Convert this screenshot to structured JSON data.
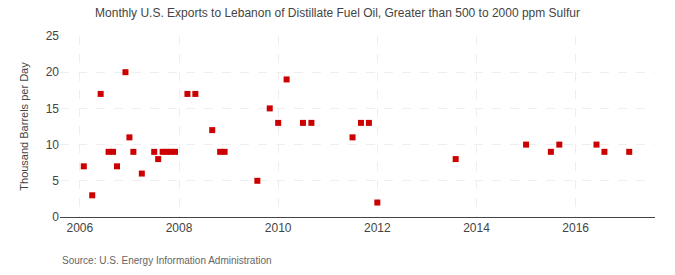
{
  "chart_data": {
    "type": "scatter",
    "title": "Monthly U.S. Exports to Lebanon of Distillate Fuel Oil, Greater than 500 to 2000 ppm Sulfur",
    "ylabel": "Thousand Barrels per Day",
    "annotations": [
      "Source: U.S. Energy Information Administration"
    ],
    "x": [
      2006.08,
      2006.25,
      2006.42,
      2006.58,
      2006.67,
      2006.75,
      2006.92,
      2007.0,
      2007.08,
      2007.25,
      2007.5,
      2007.58,
      2007.67,
      2007.75,
      2007.83,
      2007.92,
      2008.17,
      2008.33,
      2008.67,
      2008.83,
      2008.92,
      2009.58,
      2009.83,
      2010.0,
      2010.17,
      2010.5,
      2010.67,
      2011.5,
      2011.67,
      2011.83,
      2012.0,
      2013.58,
      2015.0,
      2015.5,
      2015.67,
      2016.42,
      2016.58,
      2017.08
    ],
    "values": [
      7,
      3,
      17,
      9,
      9,
      7,
      20,
      11,
      9,
      6,
      9,
      8,
      9,
      9,
      9,
      9,
      17,
      17,
      12,
      9,
      9,
      5,
      15,
      13,
      19,
      13,
      13,
      11,
      13,
      13,
      2,
      8,
      10,
      9,
      10,
      10,
      9,
      9
    ],
    "color": "#cc0000",
    "marker": "square",
    "xlim": [
      2005.6,
      2017.6
    ],
    "xticks": [
      2006,
      2008,
      2010,
      2012,
      2014,
      2016
    ],
    "ylim": [
      0,
      25
    ],
    "yticks": [
      0,
      5,
      10,
      15,
      20,
      25
    ],
    "grid": true
  }
}
